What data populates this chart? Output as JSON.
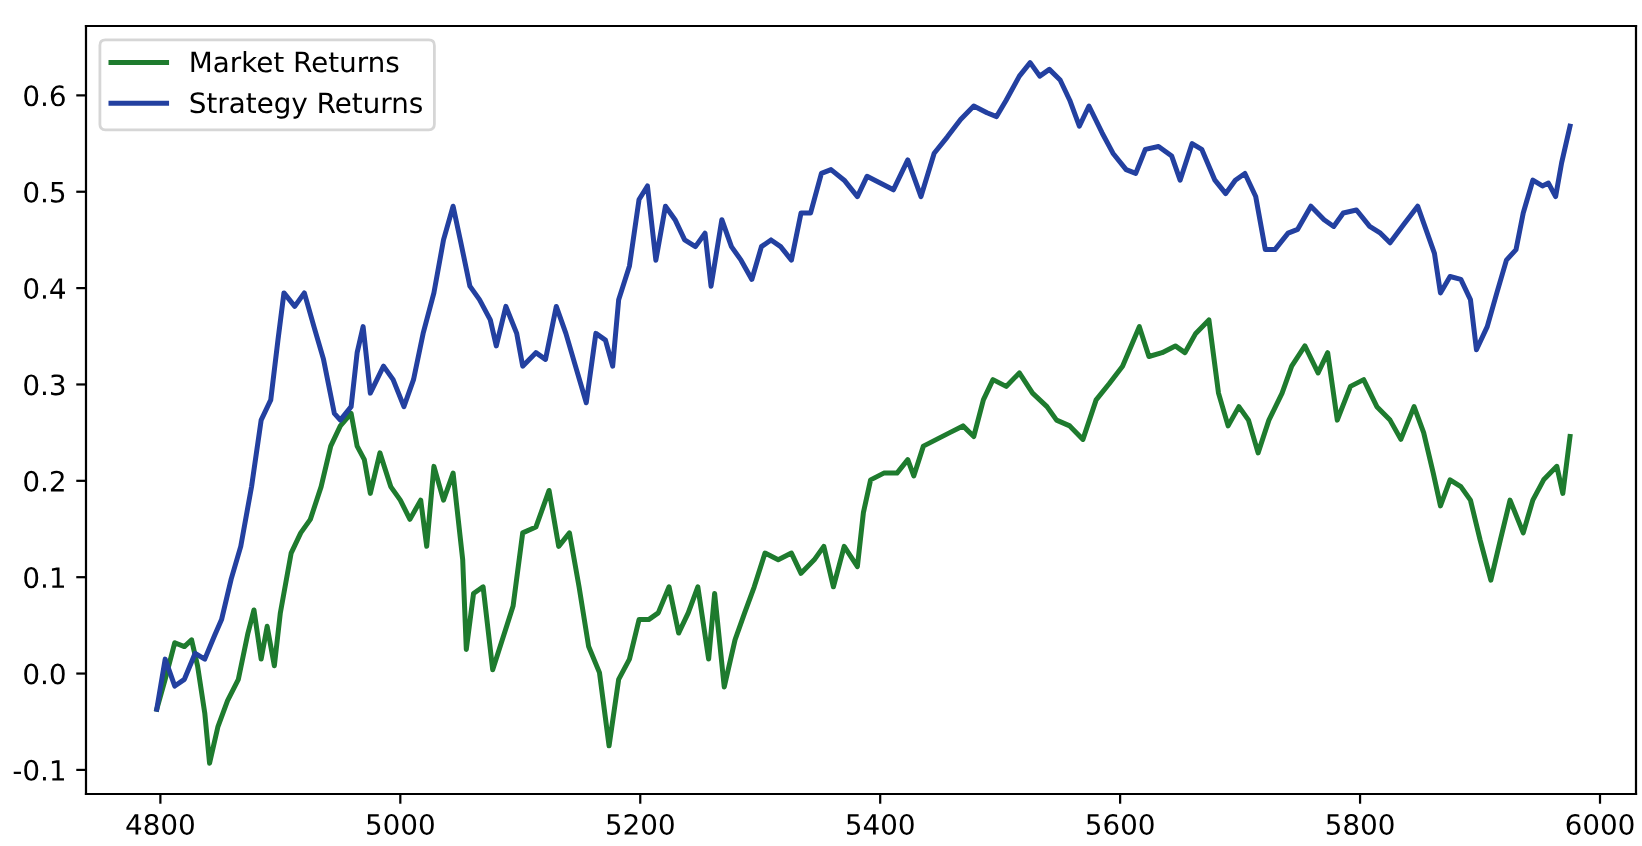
{
  "chart_data": {
    "type": "line",
    "xlim": [
      4738,
      6030
    ],
    "ylim": [
      -0.125,
      0.672
    ],
    "xticks": [
      4800,
      5000,
      5200,
      5400,
      5600,
      5800,
      6000
    ],
    "yticks": [
      {
        "value": -0.1,
        "label": "-0.1"
      },
      {
        "value": 0.0,
        "label": "0.0"
      },
      {
        "value": 0.1,
        "label": "0.1"
      },
      {
        "value": 0.2,
        "label": "0.2"
      },
      {
        "value": 0.3,
        "label": "0.3"
      },
      {
        "value": 0.4,
        "label": "0.4"
      },
      {
        "value": 0.5,
        "label": "0.5"
      },
      {
        "value": 0.6,
        "label": "0.6"
      }
    ],
    "grid": false,
    "legend": "top left",
    "series": [
      {
        "name": "Market Returns",
        "color": "#1e7b2e",
        "x": [
          4797,
          4804,
          4812,
          4820,
          4826,
          4831,
          4837,
          4841,
          4848,
          4856,
          4865,
          4873,
          4878,
          4884,
          4889,
          4895,
          4900,
          4909,
          4917,
          4925,
          4934,
          4942,
          4950,
          4959,
          4964,
          4970,
          4975,
          4983,
          4992,
          5000,
          5008,
          5017,
          5022,
          5028,
          5036,
          5044,
          5052,
          5055,
          5061,
          5069,
          5077,
          5085,
          5094,
          5102,
          5113,
          5124,
          5132,
          5141,
          5149,
          5157,
          5166,
          5174,
          5182,
          5191,
          5199,
          5207,
          5215,
          5224,
          5232,
          5240,
          5248,
          5257,
          5262,
          5270,
          5279,
          5287,
          5295,
          5304,
          5315,
          5326,
          5334,
          5345,
          5353,
          5361,
          5370,
          5381,
          5386,
          5392,
          5403,
          5414,
          5423,
          5428,
          5436,
          5447,
          5458,
          5469,
          5478,
          5486,
          5494,
          5505,
          5516,
          5527,
          5539,
          5547,
          5558,
          5569,
          5580,
          5591,
          5602,
          5616,
          5624,
          5635,
          5646,
          5654,
          5663,
          5674,
          5682,
          5690,
          5699,
          5707,
          5715,
          5724,
          5735,
          5743,
          5754,
          5765,
          5773,
          5781,
          5792,
          5803,
          5814,
          5825,
          5834,
          5845,
          5853,
          5861,
          5867,
          5875,
          5884,
          5892,
          5900,
          5909,
          5917,
          5925,
          5936,
          5944,
          5953,
          5964,
          5969,
          5975
        ],
        "values": [
          -0.037,
          -0.006,
          0.032,
          0.028,
          0.035,
          0.008,
          -0.041,
          -0.093,
          -0.055,
          -0.028,
          -0.006,
          0.042,
          0.066,
          0.015,
          0.049,
          0.008,
          0.063,
          0.125,
          0.146,
          0.16,
          0.194,
          0.236,
          0.257,
          0.27,
          0.236,
          0.222,
          0.187,
          0.229,
          0.194,
          0.18,
          0.16,
          0.18,
          0.132,
          0.215,
          0.18,
          0.208,
          0.118,
          0.025,
          0.083,
          0.09,
          0.004,
          0.035,
          0.07,
          0.146,
          0.152,
          0.19,
          0.132,
          0.146,
          0.09,
          0.028,
          0.001,
          -0.075,
          -0.006,
          0.015,
          0.056,
          0.056,
          0.063,
          0.09,
          0.042,
          0.063,
          0.09,
          0.015,
          0.083,
          -0.014,
          0.035,
          0.063,
          0.09,
          0.125,
          0.118,
          0.125,
          0.104,
          0.118,
          0.132,
          0.09,
          0.132,
          0.111,
          0.167,
          0.201,
          0.208,
          0.208,
          0.222,
          0.205,
          0.236,
          0.243,
          0.25,
          0.257,
          0.246,
          0.284,
          0.305,
          0.298,
          0.312,
          0.291,
          0.277,
          0.263,
          0.257,
          0.243,
          0.284,
          0.301,
          0.319,
          0.36,
          0.329,
          0.333,
          0.34,
          0.333,
          0.353,
          0.367,
          0.291,
          0.257,
          0.277,
          0.263,
          0.229,
          0.263,
          0.291,
          0.319,
          0.34,
          0.312,
          0.333,
          0.263,
          0.298,
          0.305,
          0.277,
          0.263,
          0.243,
          0.277,
          0.25,
          0.208,
          0.174,
          0.201,
          0.194,
          0.18,
          0.139,
          0.097,
          0.139,
          0.18,
          0.146,
          0.18,
          0.201,
          0.215,
          0.187,
          0.246
        ]
      },
      {
        "name": "Strategy Returns",
        "color": "#2340a0",
        "x": [
          4797,
          4804,
          4812,
          4820,
          4829,
          4837,
          4845,
          4851,
          4859,
          4867,
          4876,
          4884,
          4892,
          4898,
          4903,
          4912,
          4920,
          4928,
          4936,
          4945,
          4950,
          4959,
          4964,
          4969,
          4975,
          4986,
          4994,
          5003,
          5011,
          5019,
          5028,
          5036,
          5044,
          5050,
          5058,
          5066,
          5075,
          5080,
          5088,
          5097,
          5102,
          5113,
          5121,
          5130,
          5138,
          5146,
          5155,
          5163,
          5171,
          5177,
          5182,
          5191,
          5199,
          5206,
          5213,
          5221,
          5229,
          5237,
          5246,
          5254,
          5259,
          5268,
          5276,
          5284,
          5293,
          5301,
          5309,
          5317,
          5326,
          5334,
          5342,
          5351,
          5359,
          5370,
          5381,
          5389,
          5400,
          5411,
          5423,
          5434,
          5445,
          5456,
          5467,
          5478,
          5489,
          5497,
          5505,
          5516,
          5525,
          5533,
          5541,
          5550,
          5558,
          5566,
          5574,
          5585,
          5594,
          5605,
          5613,
          5621,
          5632,
          5643,
          5650,
          5660,
          5668,
          5679,
          5688,
          5696,
          5704,
          5713,
          5721,
          5729,
          5740,
          5748,
          5759,
          5770,
          5778,
          5786,
          5797,
          5808,
          5817,
          5825,
          5837,
          5848,
          5856,
          5862,
          5867,
          5875,
          5884,
          5892,
          5897,
          5906,
          5914,
          5922,
          5930,
          5936,
          5944,
          5952,
          5957,
          5963,
          5968,
          5975
        ],
        "values": [
          -0.037,
          0.015,
          -0.013,
          -0.006,
          0.021,
          0.015,
          0.039,
          0.056,
          0.098,
          0.132,
          0.194,
          0.263,
          0.284,
          0.346,
          0.395,
          0.381,
          0.395,
          0.36,
          0.326,
          0.27,
          0.263,
          0.277,
          0.333,
          0.36,
          0.291,
          0.319,
          0.305,
          0.277,
          0.305,
          0.353,
          0.395,
          0.45,
          0.485,
          0.45,
          0.402,
          0.388,
          0.367,
          0.34,
          0.381,
          0.353,
          0.319,
          0.333,
          0.326,
          0.381,
          0.353,
          0.319,
          0.281,
          0.353,
          0.346,
          0.319,
          0.388,
          0.423,
          0.492,
          0.506,
          0.429,
          0.485,
          0.471,
          0.45,
          0.443,
          0.457,
          0.402,
          0.471,
          0.443,
          0.429,
          0.409,
          0.443,
          0.45,
          0.443,
          0.429,
          0.478,
          0.478,
          0.519,
          0.523,
          0.512,
          0.495,
          0.516,
          0.509,
          0.502,
          0.533,
          0.495,
          0.54,
          0.557,
          0.575,
          0.589,
          0.582,
          0.578,
          0.595,
          0.62,
          0.634,
          0.62,
          0.627,
          0.616,
          0.595,
          0.568,
          0.589,
          0.561,
          0.54,
          0.523,
          0.519,
          0.544,
          0.547,
          0.537,
          0.512,
          0.55,
          0.544,
          0.512,
          0.498,
          0.512,
          0.519,
          0.495,
          0.44,
          0.44,
          0.457,
          0.461,
          0.485,
          0.471,
          0.464,
          0.478,
          0.481,
          0.464,
          0.457,
          0.447,
          0.467,
          0.485,
          0.457,
          0.436,
          0.395,
          0.412,
          0.409,
          0.388,
          0.336,
          0.36,
          0.395,
          0.429,
          0.44,
          0.478,
          0.512,
          0.506,
          0.509,
          0.495,
          0.53,
          0.568
        ]
      }
    ]
  }
}
